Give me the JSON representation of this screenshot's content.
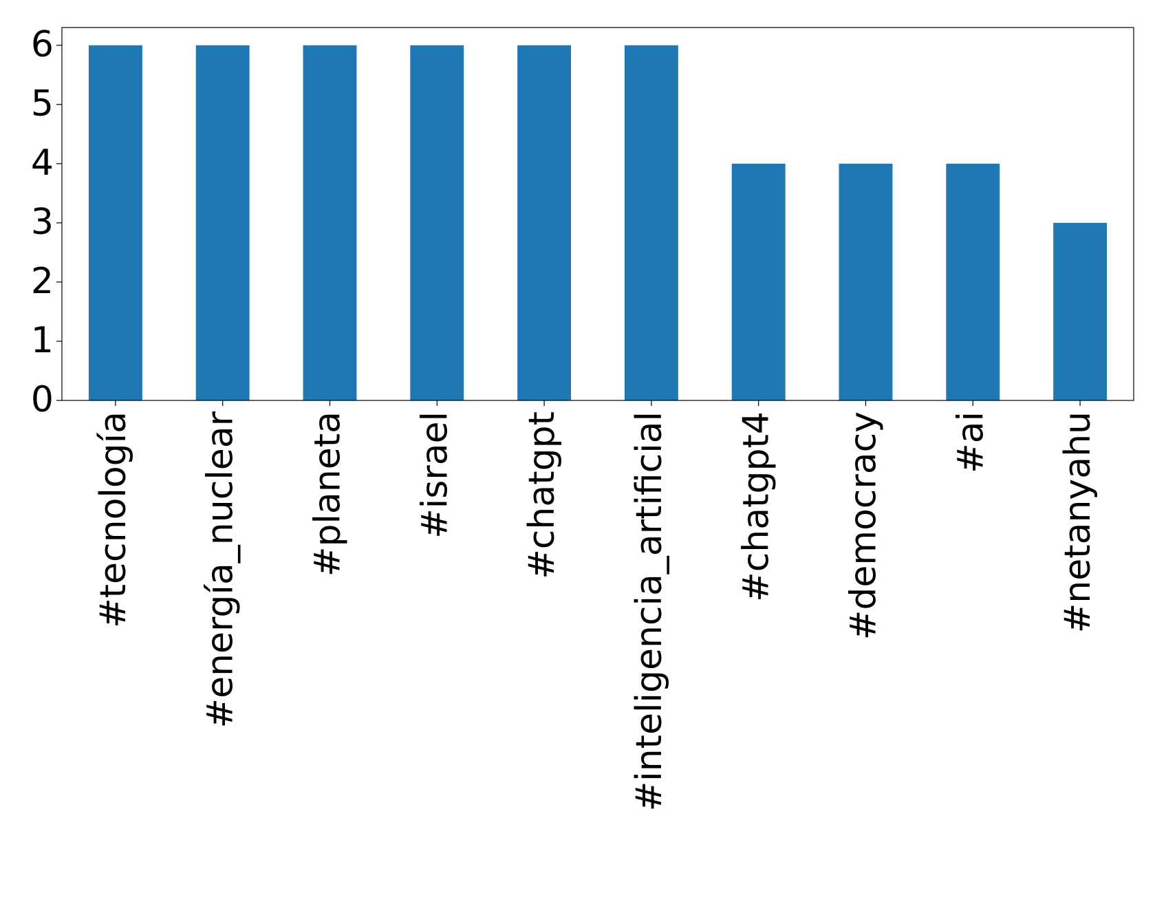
{
  "chart_data": {
    "type": "bar",
    "categories": [
      "#tecnología",
      "#energía_nuclear",
      "#planeta",
      "#israel",
      "#chatgpt",
      "#inteligencia_artificial",
      "#chatgpt4",
      "#democracy",
      "#ai",
      "#netanyahu"
    ],
    "values": [
      6,
      6,
      6,
      6,
      6,
      6,
      4,
      4,
      4,
      3
    ],
    "color": "#1f77b4",
    "ylim": [
      0,
      6.3
    ],
    "yticks": [
      0,
      1,
      2,
      3,
      4,
      5,
      6
    ],
    "grid": false
  }
}
